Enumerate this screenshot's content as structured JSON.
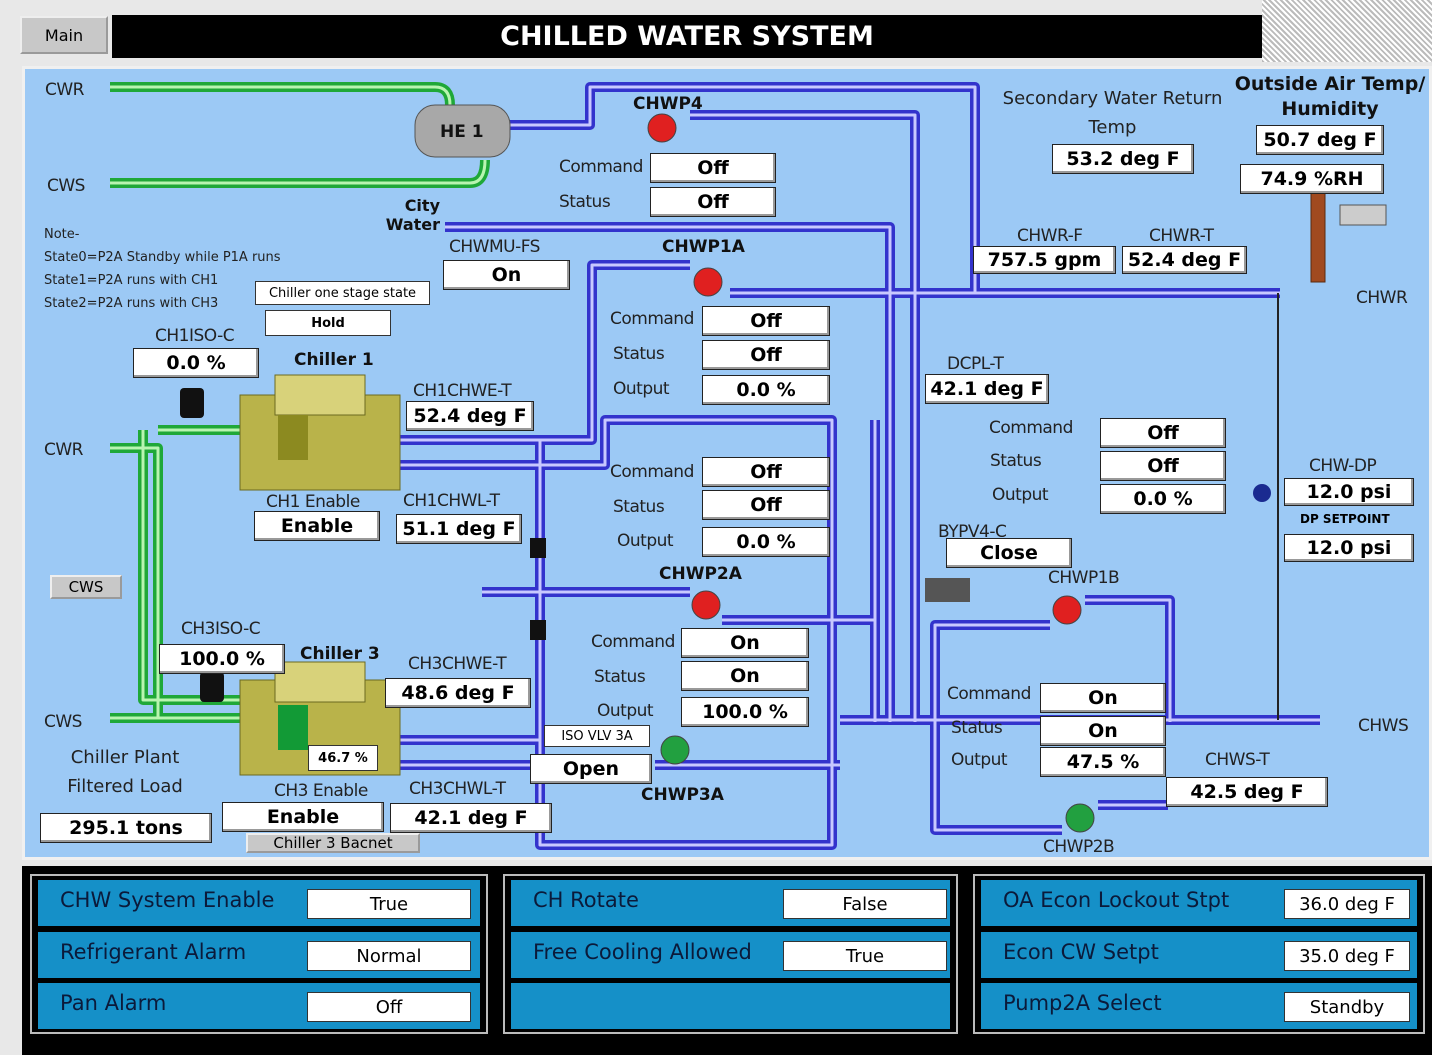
{
  "header": {
    "button": "Main",
    "title": "CHILLED WATER SYSTEM"
  },
  "diagram": {
    "cwr_top": "CWR",
    "cws_top": "CWS",
    "he1": "HE 1",
    "chwp4": {
      "name": "CHWP4",
      "command_label": "Command",
      "command": "Off",
      "status_label": "Status",
      "status": "Off"
    },
    "city_water": "City Water",
    "chwmu_fs": {
      "label": "CHWMU-FS",
      "value": "On"
    },
    "secondary_return_temp": {
      "label": "Secondary Water Return Temp",
      "value": "53.2 deg F"
    },
    "outside_air": {
      "label": "Outside Air Temp/ Humidity",
      "temp": "50.7 deg F",
      "humidity": "74.9 %RH"
    },
    "note": [
      "Note-",
      "State0=P2A Standby while P1A runs",
      "State1=P2A runs with CH1",
      "State2=P2A runs with CH3"
    ],
    "chiller_stage": {
      "label": "Chiller one stage state",
      "value": "Hold"
    },
    "ch1iso_c": {
      "label": "CH1ISO-C",
      "value": "0.0 %"
    },
    "chiller1": "Chiller 1",
    "chwp1a": {
      "name": "CHWP1A",
      "command_label": "Command",
      "command": "Off",
      "status_label": "Status",
      "status": "Off",
      "output_label": "Output",
      "output": "0.0 %"
    },
    "chwr_f": {
      "label": "CHWR-F",
      "value": "757.5 gpm"
    },
    "chwr_t": {
      "label": "CHWR-T",
      "value": "52.4 deg F"
    },
    "chwr_right": "CHWR",
    "ch1chwe_t": {
      "label": "CH1CHWE-T",
      "value": "52.4 deg F"
    },
    "dcpl_t": {
      "label": "DCPL-T",
      "value": "42.1 deg F"
    },
    "cwr_left": "CWR",
    "ch1_enable": {
      "label": "CH1 Enable",
      "value": "Enable"
    },
    "ch1chwl_t": {
      "label": "CH1CHWL-T",
      "value": "51.1 deg F"
    },
    "chwp2a": {
      "name": "CHWP2A",
      "command_label": "Command",
      "command": "Off",
      "status_label": "Status",
      "status": "Off",
      "output_label": "Output",
      "output": "0.0 %"
    },
    "chwp1b": {
      "name": "CHWP1B",
      "command_label": "Command",
      "command": "Off",
      "status_label": "Status",
      "status": "Off",
      "output_label": "Output",
      "output": "0.0 %"
    },
    "chw_dp": {
      "label": "CHW-DP",
      "value": "12.0 psi",
      "setpoint_label": "DP SETPOINT",
      "setpoint": "12.0 psi"
    },
    "bypv4_c": {
      "label": "BYPV4-C",
      "value": "Close"
    },
    "cws_button": "CWS",
    "ch3iso_c": {
      "label": "CH3ISO-C",
      "value": "100.0 %"
    },
    "chiller3": "Chiller 3",
    "chiller3_load": "46.7 %",
    "chwp3a": {
      "name": "CHWP3A",
      "command_label": "Command",
      "command": "On",
      "status_label": "Status",
      "status": "On",
      "output_label": "Output",
      "output": "100.0 %"
    },
    "ch3chwe_t": {
      "label": "CH3CHWE-T",
      "value": "48.6 deg F"
    },
    "chwp2b": {
      "name": "CHWP2B",
      "command_label": "Command",
      "command": "On",
      "status_label": "Status",
      "status": "On",
      "output_label": "Output",
      "output": "47.5 %"
    },
    "cws_left": "CWS",
    "chws_right": "CHWS",
    "iso_vlv_3a": {
      "label": "ISO VLV 3A",
      "value": "Open"
    },
    "plant_load": {
      "label": "Chiller Plant Filtered Load",
      "value": "295.1 tons"
    },
    "ch3_enable": {
      "label": "CH3 Enable",
      "value": "Enable"
    },
    "ch3chwl_t": {
      "label": "CH3CHWL-T",
      "value": "42.1 deg F"
    },
    "chiller3_bacnet": "Chiller 3 Bacnet",
    "chws_t": {
      "label": "CHWS-T",
      "value": "42.5 deg F"
    }
  },
  "panels": [
    {
      "rows": [
        {
          "label": "CHW System Enable",
          "value": "True"
        },
        {
          "label": "Refrigerant Alarm",
          "value": "Normal"
        },
        {
          "label": "Pan Alarm",
          "value": "Off"
        }
      ]
    },
    {
      "rows": [
        {
          "label": "CH Rotate",
          "value": "False"
        },
        {
          "label": "Free Cooling Allowed",
          "value": "True"
        }
      ]
    },
    {
      "rows": [
        {
          "label": "OA Econ Lockout Stpt",
          "value": "36.0 deg F"
        },
        {
          "label": "Econ CW Setpt",
          "value": "35.0 deg F"
        },
        {
          "label": "Pump2A Select",
          "value": "Standby"
        }
      ]
    }
  ]
}
